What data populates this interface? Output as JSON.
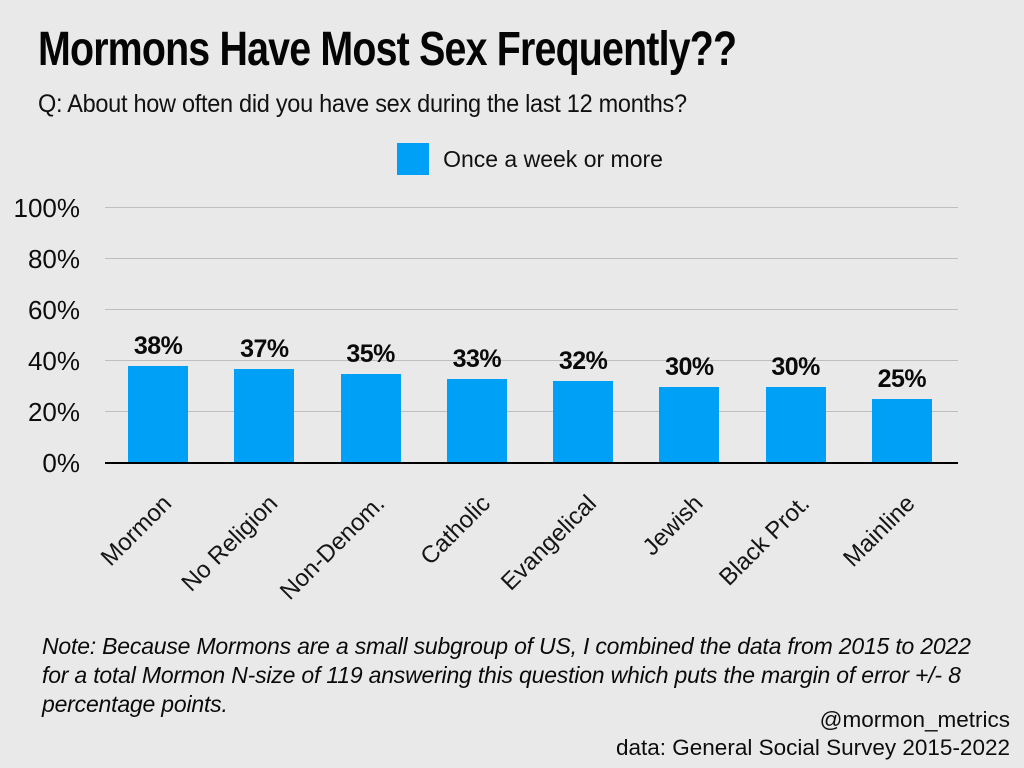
{
  "title": "Mormons Have Most Sex Frequently??",
  "subtitle": "Q: About how often did you have sex during the last 12 months?",
  "legend": {
    "label": "Once a week or more",
    "swatch_color": "#00A0F6"
  },
  "chart_data": {
    "type": "bar",
    "title": "Mormons Have Most Sex Frequently??",
    "categories": [
      "Mormon",
      "No Religion",
      "Non-Denom.",
      "Catholic",
      "Evangelical",
      "Jewish",
      "Black Prot.",
      "Mainline"
    ],
    "values": [
      38,
      37,
      35,
      33,
      32,
      30,
      30,
      25
    ],
    "value_labels": [
      "38%",
      "37%",
      "35%",
      "33%",
      "32%",
      "30%",
      "30%",
      "25%"
    ],
    "series_name": "Once a week or more",
    "xlabel": "",
    "ylabel": "",
    "ylim": [
      0,
      100
    ],
    "ytick_values": [
      0,
      20,
      40,
      60,
      80,
      100
    ],
    "ytick_labels": [
      "0%",
      "20%",
      "40%",
      "60%",
      "80%",
      "100%"
    ],
    "grid": true,
    "legend_position": "top-center",
    "bar_color": "#00A0F6"
  },
  "note": "Note: Because Mormons are a small subgroup of US, I combined the data from 2015 to 2022 for a total Mormon N-size of 119 answering this question which puts the margin of error +/- 8 percentage points.",
  "attribution": {
    "handle": "@mormon_metrics",
    "source": "data: General Social Survey 2015-2022"
  },
  "colors": {
    "background": "#E9E9E9",
    "bar": "#00A0F6",
    "gridline": "#BEBEBE",
    "axis": "#000000",
    "text": "#0a0a0a"
  }
}
